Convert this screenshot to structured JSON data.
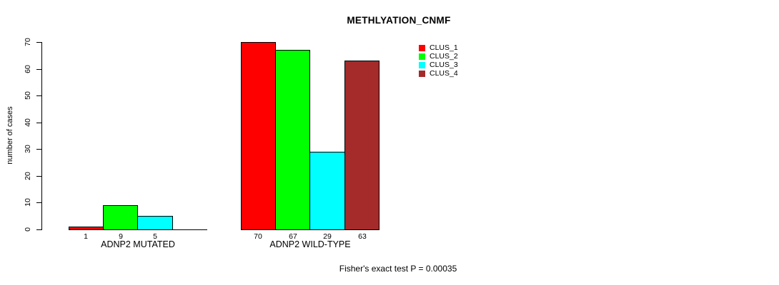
{
  "chart_data": {
    "type": "bar",
    "title": "METHLYATION_CNMF",
    "ylabel": "number of cases",
    "ylim": [
      0,
      70
    ],
    "yticks": [
      0,
      10,
      20,
      30,
      40,
      50,
      60,
      70
    ],
    "grid": false,
    "legend_position": "top-right",
    "categories": [
      "ADNP2 MUTATED",
      "ADNP2 WILD-TYPE"
    ],
    "series": [
      {
        "name": "CLUS_1",
        "color": "#FF0000",
        "values": [
          1,
          70
        ]
      },
      {
        "name": "CLUS_2",
        "color": "#00FF00",
        "values": [
          9,
          67
        ]
      },
      {
        "name": "CLUS_3",
        "color": "#00FFFF",
        "values": [
          5,
          29
        ]
      },
      {
        "name": "CLUS_4",
        "color": "#A52A2A",
        "values": [
          0,
          63
        ]
      }
    ],
    "bar_value_labels": [
      [
        "1",
        "9",
        "5",
        ""
      ],
      [
        "70",
        "67",
        "29",
        "63"
      ]
    ],
    "footnote": "Fisher's exact test P = 0.00035"
  }
}
